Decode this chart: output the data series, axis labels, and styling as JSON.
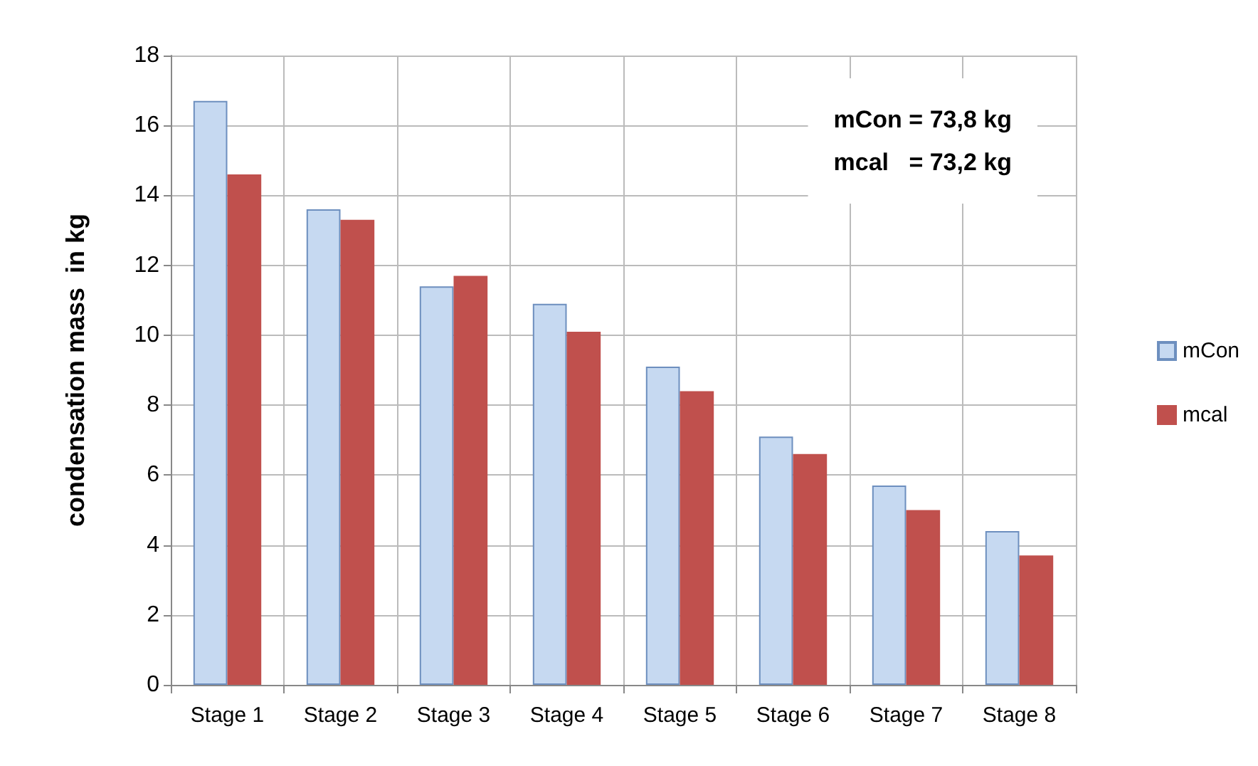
{
  "chart_data": {
    "type": "bar",
    "ylabel": "condensation mass  in kg",
    "categories": [
      "Stage 1",
      "Stage 2",
      "Stage 3",
      "Stage 4",
      "Stage 5",
      "Stage 6",
      "Stage 7",
      "Stage 8"
    ],
    "series": [
      {
        "name": "mCon",
        "color": "#c6d9f1",
        "values": [
          16.7,
          13.6,
          11.4,
          10.9,
          9.1,
          7.1,
          5.7,
          4.4
        ]
      },
      {
        "name": "mcal",
        "color": "#c0504d",
        "values": [
          14.6,
          13.3,
          11.7,
          10.1,
          8.4,
          6.6,
          5.0,
          3.7
        ]
      }
    ],
    "ylim": [
      0,
      18
    ],
    "yticks": [
      0,
      2,
      4,
      6,
      8,
      10,
      12,
      14,
      16,
      18
    ],
    "grid": true,
    "legend": "right",
    "annotations": [
      "mCon = 73,8 kg",
      "mcal   = 73,2 kg"
    ]
  }
}
